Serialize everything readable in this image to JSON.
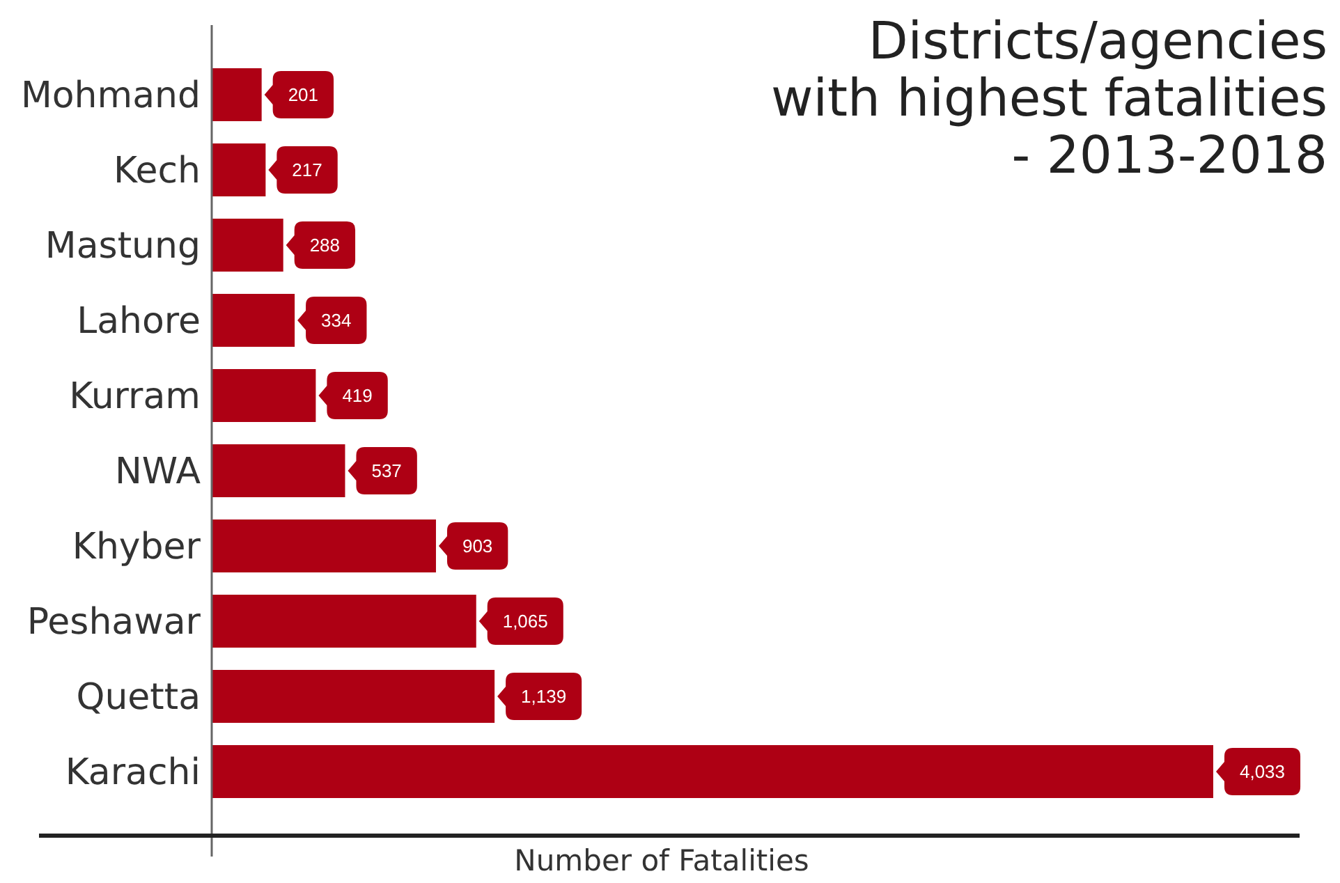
{
  "chart_data": {
    "type": "bar",
    "orientation": "horizontal",
    "title": "Districts/agencies\nwith highest fatalities\n- 2013-2018",
    "xlabel": "Number of Fatalities",
    "categories": [
      "Mohmand",
      "Kech",
      "Mastung",
      "Lahore",
      "Kurram",
      "NWA",
      "Khyber",
      "Peshawar",
      "Quetta",
      "Karachi"
    ],
    "values": [
      201,
      217,
      288,
      334,
      419,
      537,
      903,
      1065,
      1139,
      4033
    ],
    "value_labels": [
      "201",
      "217",
      "288",
      "334",
      "419",
      "537",
      "903",
      "1,065",
      "1,139",
      "4,033"
    ],
    "color": "#ae0014"
  }
}
